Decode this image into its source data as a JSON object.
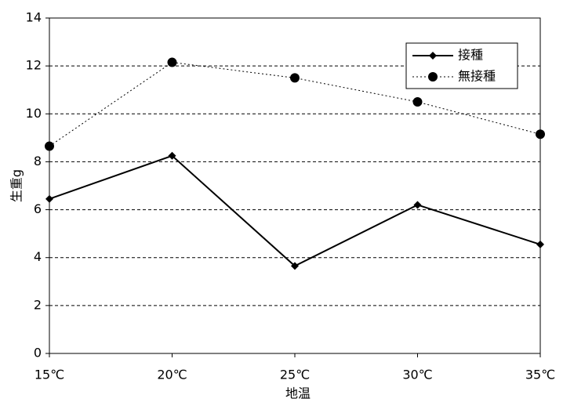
{
  "chart_data": {
    "type": "line",
    "x_label": "地温",
    "y_label": "生重g",
    "categories": [
      "15℃",
      "20℃",
      "25℃",
      "30℃",
      "35℃"
    ],
    "series": [
      {
        "name": "接種",
        "color": "#000000",
        "marker": "diamond",
        "line_style": "solid",
        "values": [
          6.45,
          8.25,
          3.65,
          6.2,
          4.55
        ]
      },
      {
        "name": "無接種",
        "color": "#000000",
        "marker": "circle",
        "line_style": "dotted",
        "values": [
          8.65,
          12.15,
          11.5,
          10.5,
          9.15
        ]
      }
    ],
    "ylim": [
      0,
      14
    ],
    "yticks": [
      0,
      2,
      4,
      6,
      8,
      10,
      12,
      14
    ],
    "grid": true,
    "legend": "upper right"
  }
}
